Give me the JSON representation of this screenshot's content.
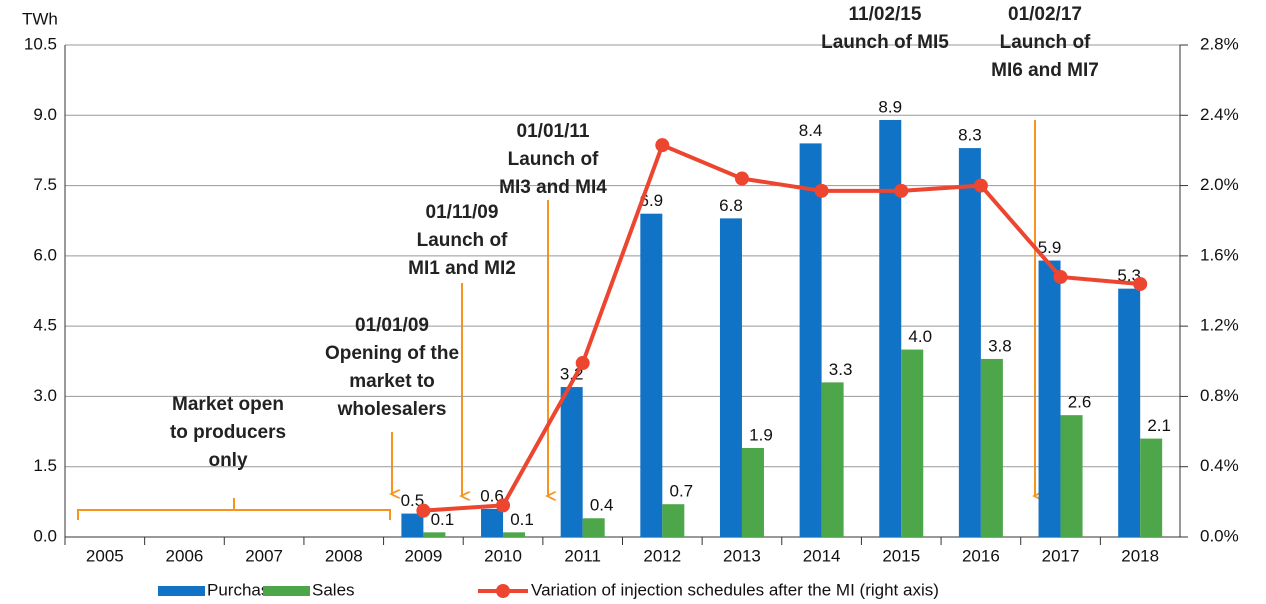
{
  "chart_data": {
    "type": "bar",
    "y_axis_label": "TWh",
    "categories": [
      "2005",
      "2006",
      "2007",
      "2008",
      "2009",
      "2010",
      "2011",
      "2012",
      "2013",
      "2014",
      "2015",
      "2016",
      "2017",
      "2018"
    ],
    "series": [
      {
        "name": "Purchases",
        "color": "#1173c6",
        "values": [
          null,
          null,
          null,
          null,
          0.5,
          0.6,
          3.2,
          6.9,
          6.8,
          8.4,
          8.9,
          8.3,
          5.9,
          5.3
        ],
        "value_labels": [
          null,
          null,
          null,
          null,
          "0.5",
          "0.6",
          "3.2",
          "6.9",
          "6.8",
          "8.4",
          "8.9",
          "8.3",
          "5.9",
          "5.3"
        ]
      },
      {
        "name": "Sales",
        "color": "#4ea64a",
        "values": [
          null,
          null,
          null,
          null,
          0.1,
          0.1,
          0.4,
          0.7,
          1.9,
          3.3,
          4.0,
          3.8,
          2.6,
          2.1
        ],
        "value_labels": [
          null,
          null,
          null,
          null,
          "0.1",
          "0.1",
          "0.4",
          "0.7",
          "1.9",
          "3.3",
          "4.0",
          "3.8",
          "2.6",
          "2.1"
        ]
      },
      {
        "name": "Variation of injection schedules after the MI (right axis)",
        "color": "#ec4630",
        "type": "line",
        "axis": "y2",
        "values": [
          null,
          null,
          null,
          null,
          0.15,
          0.18,
          0.99,
          2.23,
          2.04,
          1.97,
          1.97,
          2.0,
          1.48,
          1.44
        ]
      }
    ],
    "ylim": [
      0,
      10.5
    ],
    "yticks": [
      {
        "value": 0,
        "label": "0.0"
      },
      1.5,
      {
        "value": 3,
        "label": "3.0"
      },
      4.5,
      {
        "value": 6,
        "label": "6.0"
      },
      7.5,
      {
        "value": 9,
        "label": "9.0"
      },
      10.5
    ],
    "y2lim": [
      0,
      2.8
    ],
    "y2ticks": [
      {
        "value": 0,
        "label": "0.0%"
      },
      {
        "value": 0.4,
        "label": "0.4%"
      },
      {
        "value": 0.8,
        "label": "0.8%"
      },
      {
        "value": 1.2,
        "label": "1.2%"
      },
      {
        "value": 1.6,
        "label": "1.6%"
      },
      {
        "value": 2.0,
        "label": "2.0%"
      },
      {
        "value": 2.4,
        "label": "2.4%"
      },
      {
        "value": 2.8,
        "label": "2.8%"
      }
    ],
    "grid": true,
    "annotations": [
      {
        "lines": [
          "Market open",
          "to producers",
          "only"
        ]
      },
      {
        "lines": [
          "01/01/09",
          "Opening of the",
          "market to",
          "wholesalers"
        ]
      },
      {
        "lines": [
          "01/11/09",
          "Launch of",
          "MI1 and MI2"
        ]
      },
      {
        "lines": [
          "01/01/11",
          "Launch of",
          "MI3 and MI4"
        ]
      },
      {
        "lines": [
          "11/02/15",
          "Launch of MI5"
        ]
      },
      {
        "lines": [
          "01/02/17",
          "Launch of",
          "MI6 and MI7"
        ]
      }
    ]
  }
}
